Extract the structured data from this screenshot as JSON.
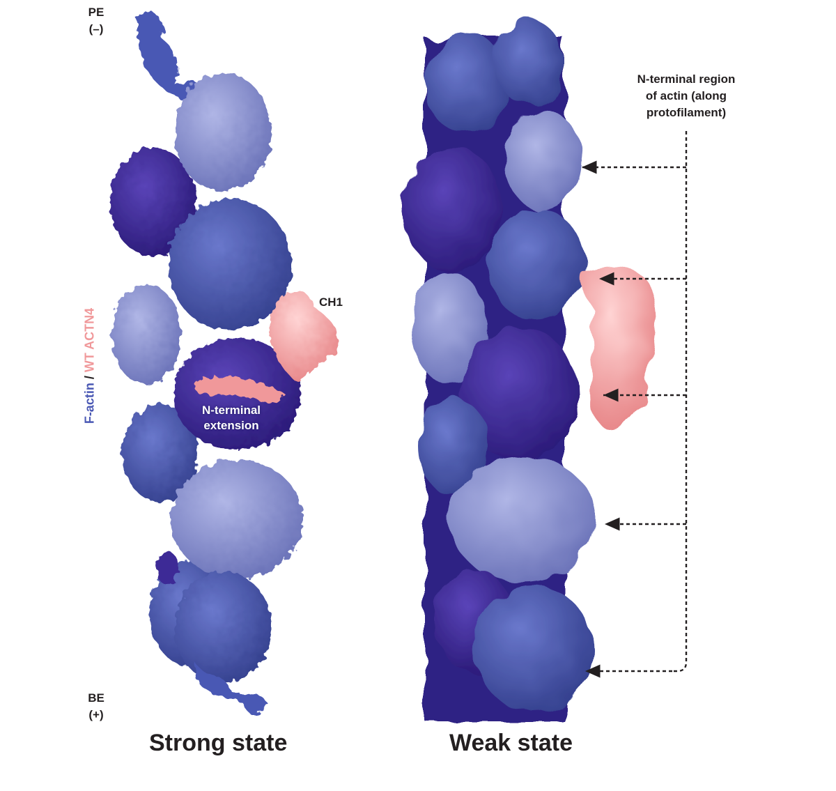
{
  "colors": {
    "actin_dark": "#3c2a96",
    "actin_mid": "#4a58b4",
    "actin_light": "#8c93d4",
    "actn4_pink": "#f0989a",
    "label_dark": "#231f20"
  },
  "ends": {
    "pointed_end": "PE",
    "pointed_sign": "(–)",
    "barbed_end": "BE",
    "barbed_sign": "(+)"
  },
  "legend": {
    "factin": "F-actin",
    "separator": " / ",
    "actn4": "WT ACTN4"
  },
  "strong": {
    "title": "Strong state",
    "ch1_label": "CH1",
    "nterm_line1": "N-terminal",
    "nterm_line2": "extension"
  },
  "weak": {
    "title": "Weak state",
    "annotation_line1": "N-terminal region",
    "annotation_line2": "of actin (along",
    "annotation_line3": "protofilament)"
  }
}
